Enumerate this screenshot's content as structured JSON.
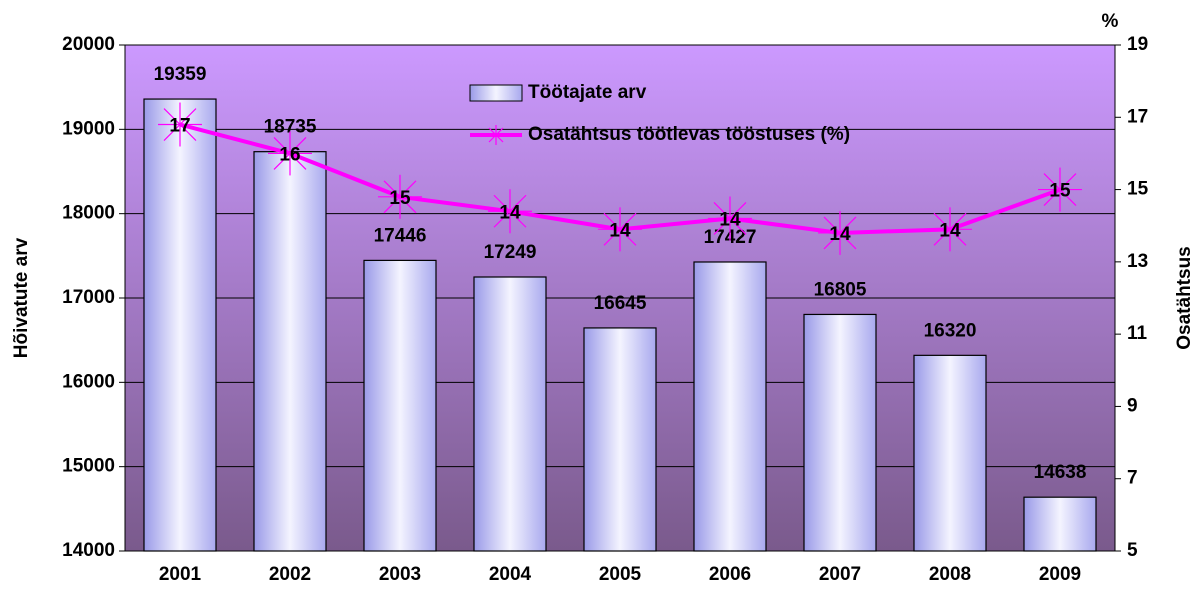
{
  "chart_data": {
    "type": "bar_line",
    "categories": [
      "2001",
      "2002",
      "2003",
      "2004",
      "2005",
      "2006",
      "2007",
      "2008",
      "2009"
    ],
    "series": [
      {
        "name": "Töötajate arv",
        "type": "bar",
        "color": "#c8c8ff",
        "axis": "y",
        "values": [
          19359,
          18735,
          17446,
          17249,
          16645,
          17427,
          16805,
          16320,
          14638
        ]
      },
      {
        "name": "Osatähtsus töötlevas tööstuses (%)",
        "type": "line",
        "color": "#ff00ff",
        "axis": "y2",
        "values": [
          16.8,
          16.0,
          14.8,
          14.4,
          13.9,
          14.2,
          13.8,
          13.9,
          15.0
        ],
        "value_labels": [
          "17",
          "16",
          "15",
          "14",
          "14",
          "14",
          "14",
          "14",
          "15"
        ]
      }
    ],
    "ylabel": "Hõivatute arv",
    "y2label": "Osatähtsus",
    "y2_unit": "%",
    "ylim": [
      14000,
      20000
    ],
    "yticks": [
      14000,
      15000,
      16000,
      17000,
      18000,
      19000,
      20000
    ],
    "y2lim": [
      5,
      19
    ],
    "y2ticks": [
      5,
      7,
      9,
      11,
      13,
      15,
      17,
      19
    ],
    "grid": true,
    "legend": "top"
  }
}
